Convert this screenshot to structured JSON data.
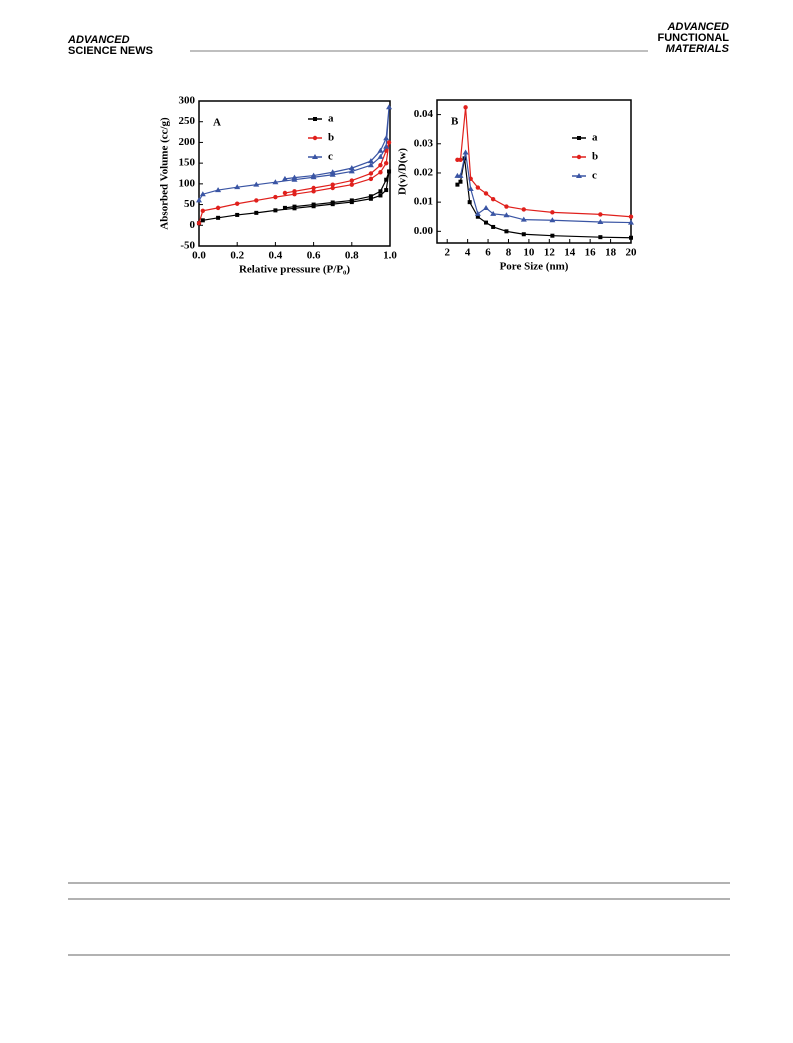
{
  "header": {
    "left_top": "ADVANCED",
    "left_bottom": "SCIENCE NEWS",
    "right_lines": [
      "ADVANCED",
      "FUNCTIONAL",
      "MATERIALS"
    ]
  },
  "chart_data": [
    {
      "type": "line",
      "annotation": "A",
      "x_label": "Relative pressure (P/P₀)",
      "y_label": "Absorbed Volume (cc/g)",
      "xlim": [
        0,
        1
      ],
      "ylim": [
        -50,
        300
      ],
      "xticks": [
        {
          "value": 0,
          "label": "0.0"
        },
        0.2,
        0.4,
        0.6,
        0.8,
        {
          "value": 1,
          "label": "1.0"
        }
      ],
      "yticks": [
        -50,
        0,
        50,
        100,
        150,
        200,
        250,
        300
      ],
      "legend": "upper right",
      "series": [
        {
          "name": "a",
          "color": "#000000",
          "marker": "square",
          "x": [
            0,
            0.02,
            0.1,
            0.2,
            0.3,
            0.4,
            0.5,
            0.6,
            0.7,
            0.8,
            0.9,
            0.95,
            0.98,
            0.995,
            0.98,
            0.95,
            0.9,
            0.8,
            0.7,
            0.6,
            0.5,
            0.45
          ],
          "values": [
            5,
            12,
            18,
            25,
            30,
            36,
            41,
            46,
            51,
            56,
            64,
            72,
            85,
            130,
            110,
            82,
            70,
            60,
            55,
            50,
            45,
            42
          ]
        },
        {
          "name": "b",
          "color": "#e0201c",
          "marker": "circle",
          "x": [
            0,
            0.02,
            0.1,
            0.2,
            0.3,
            0.4,
            0.5,
            0.6,
            0.7,
            0.8,
            0.9,
            0.95,
            0.98,
            0.995,
            0.98,
            0.95,
            0.9,
            0.8,
            0.7,
            0.6,
            0.5,
            0.45
          ],
          "values": [
            5,
            35,
            42,
            52,
            60,
            68,
            75,
            82,
            90,
            98,
            112,
            128,
            150,
            200,
            180,
            145,
            125,
            108,
            98,
            90,
            82,
            78
          ]
        },
        {
          "name": "c",
          "color": "#3a55a4",
          "marker": "triangle",
          "x": [
            0,
            0.02,
            0.1,
            0.2,
            0.3,
            0.4,
            0.5,
            0.6,
            0.7,
            0.8,
            0.9,
            0.95,
            0.98,
            0.995,
            0.98,
            0.95,
            0.9,
            0.8,
            0.7,
            0.6,
            0.5,
            0.45
          ],
          "values": [
            60,
            75,
            85,
            92,
            98,
            104,
            110,
            116,
            122,
            130,
            145,
            165,
            190,
            285,
            210,
            180,
            155,
            138,
            128,
            120,
            115,
            112
          ]
        }
      ]
    },
    {
      "type": "line",
      "annotation": "B",
      "x_label": "Pore Size (nm)",
      "y_label": "D(v)/D(w)",
      "xlim": [
        1,
        20
      ],
      "ylim": [
        -0.004,
        0.045
      ],
      "xticks": [
        2,
        4,
        6,
        8,
        10,
        12,
        14,
        16,
        18,
        20
      ],
      "yticks": [
        {
          "value": 0,
          "label": "0.00"
        },
        0.01,
        0.02,
        0.03,
        {
          "value": 0.04,
          "label": "0.04"
        }
      ],
      "legend": "upper right",
      "series": [
        {
          "name": "a",
          "color": "#000000",
          "marker": "square",
          "x": [
            3,
            3.3,
            3.7,
            4.2,
            5,
            5.8,
            6.5,
            7.8,
            9.5,
            12.3,
            17,
            20
          ],
          "values": [
            0.016,
            0.017,
            0.025,
            0.01,
            0.005,
            0.003,
            0.0015,
            0,
            -0.001,
            -0.0015,
            -0.002,
            -0.0022
          ]
        },
        {
          "name": "b",
          "color": "#e0201c",
          "marker": "circle",
          "x": [
            3,
            3.3,
            3.8,
            4.3,
            5,
            5.8,
            6.5,
            7.8,
            9.5,
            12.3,
            17,
            20
          ],
          "values": [
            0.0245,
            0.0245,
            0.0425,
            0.018,
            0.015,
            0.013,
            0.011,
            0.0085,
            0.0075,
            0.0065,
            0.0058,
            0.005
          ]
        },
        {
          "name": "c",
          "color": "#3a55a4",
          "marker": "triangle",
          "x": [
            3,
            3.3,
            3.8,
            4.3,
            5,
            5.8,
            6.5,
            7.8,
            9.5,
            12.3,
            17,
            20
          ],
          "values": [
            0.019,
            0.019,
            0.027,
            0.0145,
            0.006,
            0.008,
            0.006,
            0.0055,
            0.004,
            0.0038,
            0.0032,
            0.003
          ]
        }
      ]
    }
  ]
}
